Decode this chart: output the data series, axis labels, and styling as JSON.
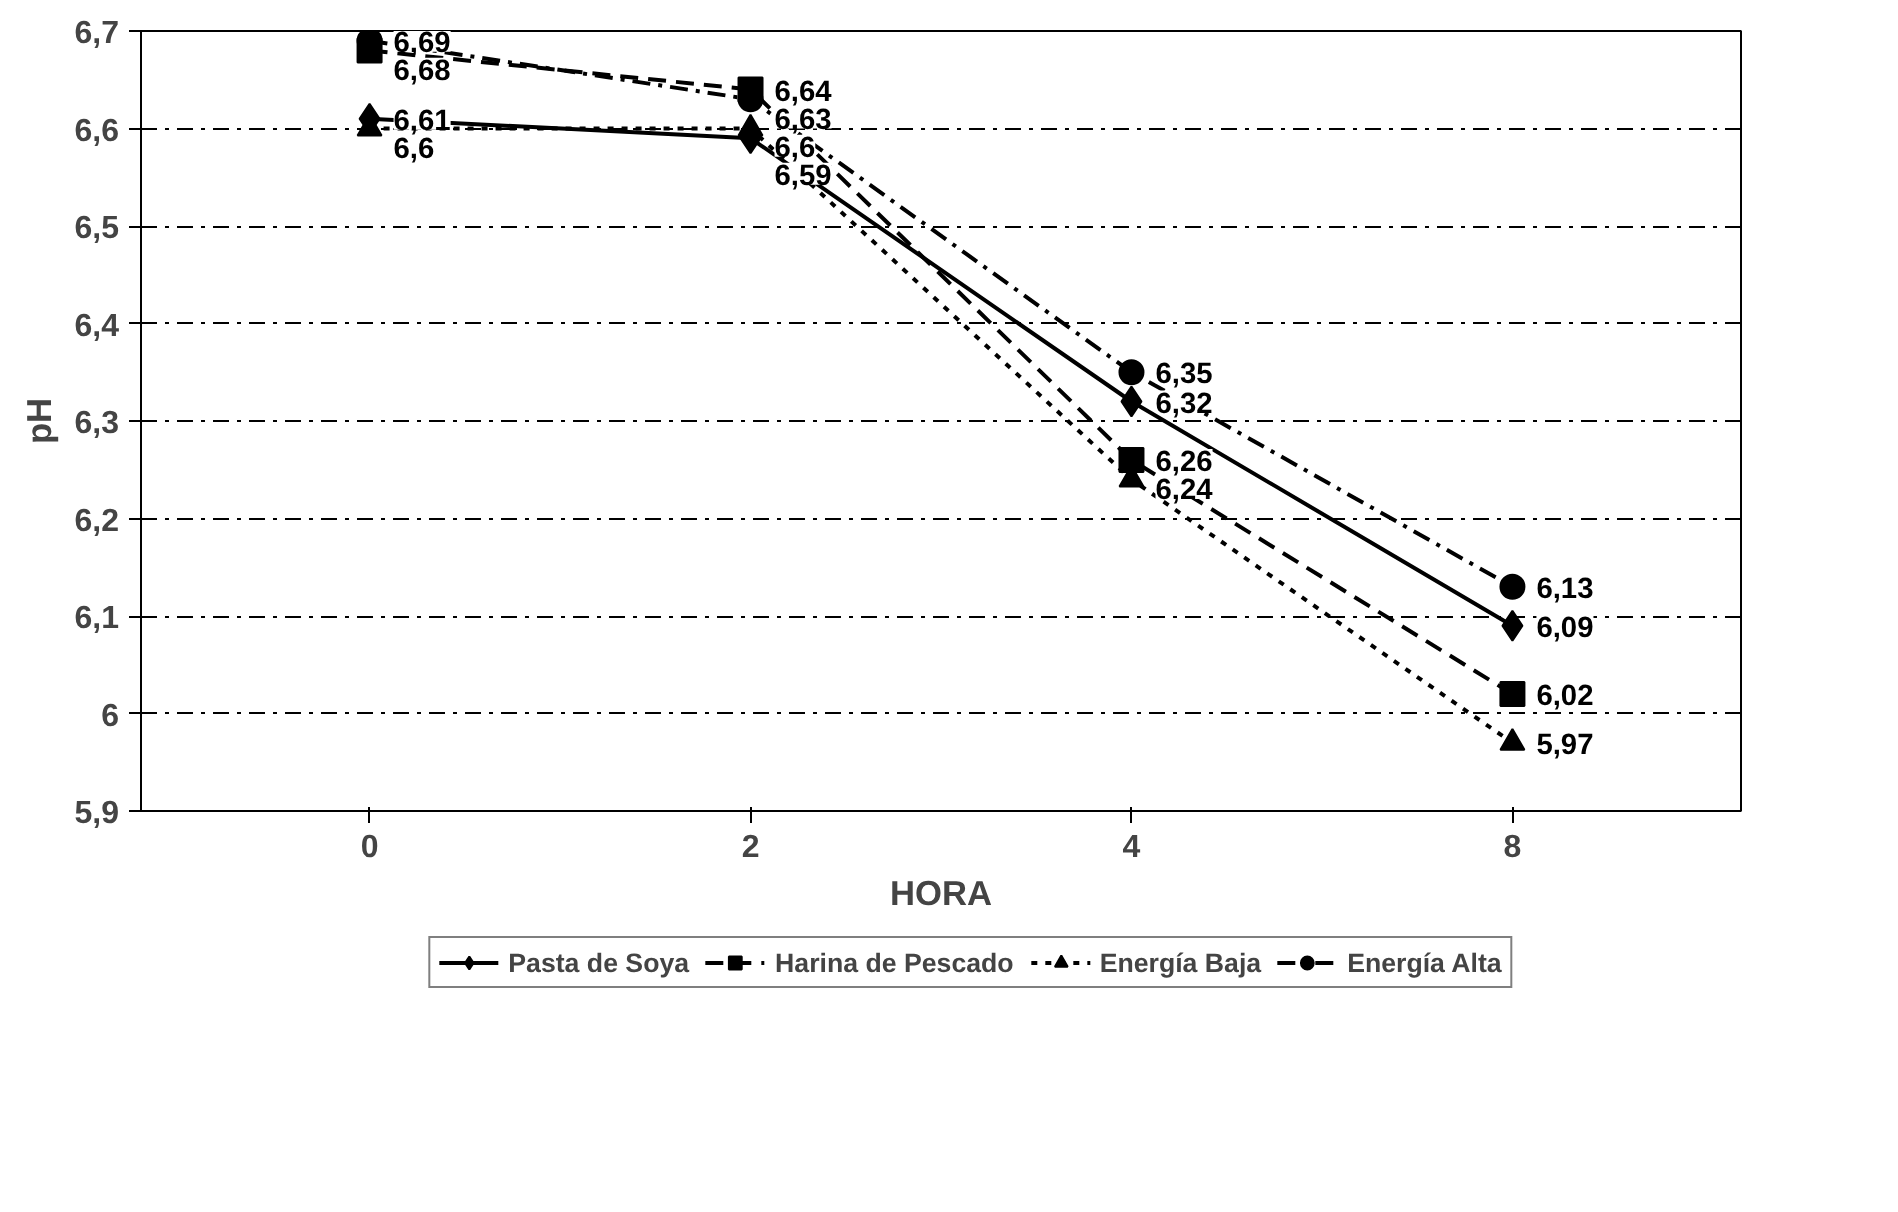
{
  "chart_data": {
    "type": "line",
    "xlabel": "HORA",
    "ylabel": "pH",
    "categories": [
      "0",
      "2",
      "4",
      "8"
    ],
    "ylim": [
      5.9,
      6.7
    ],
    "yticks": [
      {
        "value": 5.9,
        "label": "5,9"
      },
      6,
      {
        "value": 6.1,
        "label": "6,1"
      },
      {
        "value": 6.2,
        "label": "6,2"
      },
      {
        "value": 6.3,
        "label": "6,3"
      },
      {
        "value": 6.4,
        "label": "6,4"
      },
      {
        "value": 6.5,
        "label": "6,5"
      },
      {
        "value": 6.6,
        "label": "6,6"
      },
      {
        "value": 6.7,
        "label": "6,7"
      }
    ],
    "grid": "y",
    "legend": "bottom",
    "series": [
      {
        "name": "Pasta de Soya",
        "color": "#000000",
        "values": [
          6.61,
          6.59,
          6.32,
          6.09
        ],
        "value_labels": [
          "6,61",
          "6,59",
          "6,32",
          "6,09"
        ],
        "marker": "diamond",
        "line_style": "solid"
      },
      {
        "name": "Harina de Pescado",
        "color": "#000000",
        "values": [
          6.68,
          6.64,
          6.26,
          6.02
        ],
        "value_labels": [
          "6,68",
          "6,64",
          "6,26",
          "6,02"
        ],
        "marker": "square",
        "line_style": "dashed"
      },
      {
        "name": "Energía Baja",
        "color": "#000000",
        "values": [
          6.6,
          6.6,
          6.24,
          5.97
        ],
        "value_labels": [
          "6,6",
          "6,6",
          "6,24",
          "5,97"
        ],
        "marker": "triangle",
        "line_style": "dotted"
      },
      {
        "name": "Energía Alta",
        "color": "#000000",
        "values": [
          6.69,
          6.63,
          6.35,
          6.13
        ],
        "value_labels": [
          "6,69",
          "6,63",
          "6,35",
          "6,13"
        ],
        "marker": "circle",
        "line_style": "dashdot"
      }
    ]
  }
}
